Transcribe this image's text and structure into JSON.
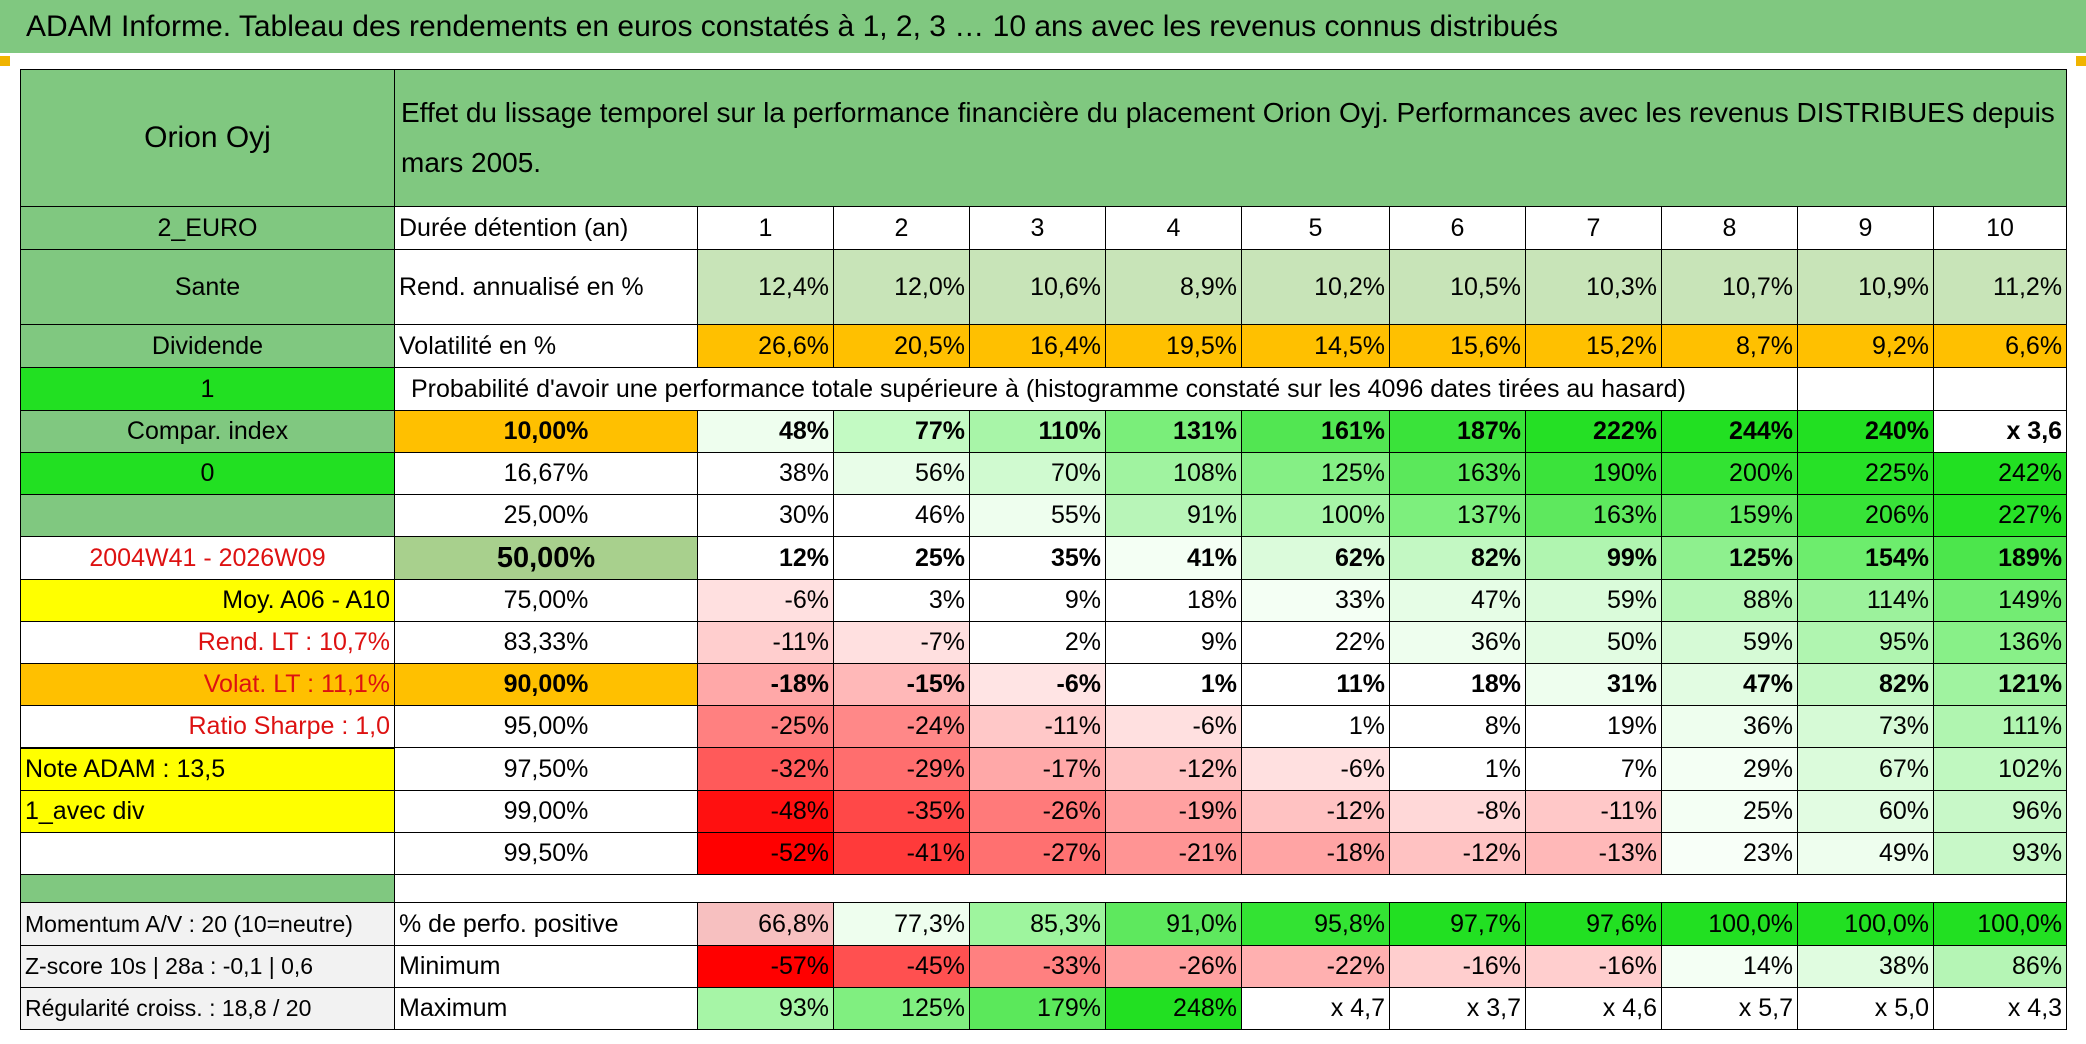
{
  "title": "ADAM Informe. Tableau des rendements en euros constatés à 1, 2, 3 … 10 ans avec les revenus connus distribués",
  "header": {
    "asset": "Orion Oyj",
    "description": "Effet du lissage temporel sur la performance financière du placement Orion Oyj. Performances avec les revenus DISTRIBUES depuis mars 2005."
  },
  "left_panel": {
    "currency": "2_EURO",
    "sector": "Sante",
    "type": "Dividende",
    "flag1": "1",
    "compar_index": "Compar. index",
    "flag0": "0",
    "blank": "",
    "period": "2004W41 - 2026W09",
    "moy": "Moy. A06 - A10",
    "rend_lt": "Rend. LT :    10,7%",
    "volat_lt": "Volat. LT :    11,1%",
    "sharpe": "Ratio Sharpe :    1,0",
    "note": "Note ADAM : 13,5",
    "variant": "1_avec div"
  },
  "table": {
    "duration_label": "Durée détention (an)",
    "years": [
      "1",
      "2",
      "3",
      "4",
      "5",
      "6",
      "7",
      "8",
      "9",
      "10"
    ],
    "rend_label": "Rend. annualisé en %",
    "rend": [
      "12,4%",
      "12,0%",
      "10,6%",
      "8,9%",
      "10,2%",
      "10,5%",
      "10,3%",
      "10,7%",
      "10,9%",
      "11,2%"
    ],
    "vol_label": "Volatilité en %",
    "vol": [
      "26,6%",
      "20,5%",
      "16,4%",
      "19,5%",
      "14,5%",
      "15,6%",
      "15,2%",
      "8,7%",
      "9,2%",
      "6,6%"
    ],
    "prob_label": "Probabilité d'avoir une performance totale supérieure à (histogramme constaté sur les 4096 dates tirées au hasard)",
    "prob_rows": [
      {
        "p": "10,00%",
        "v": [
          "48%",
          "77%",
          "110%",
          "131%",
          "161%",
          "187%",
          "222%",
          "244%",
          "240%",
          "x 3,6"
        ]
      },
      {
        "p": "16,67%",
        "v": [
          "38%",
          "56%",
          "70%",
          "108%",
          "125%",
          "163%",
          "190%",
          "200%",
          "225%",
          "242%"
        ]
      },
      {
        "p": "25,00%",
        "v": [
          "30%",
          "46%",
          "55%",
          "91%",
          "100%",
          "137%",
          "163%",
          "159%",
          "206%",
          "227%"
        ]
      },
      {
        "p": "50,00%",
        "v": [
          "12%",
          "25%",
          "35%",
          "41%",
          "62%",
          "82%",
          "99%",
          "125%",
          "154%",
          "189%"
        ]
      },
      {
        "p": "75,00%",
        "v": [
          "-6%",
          "3%",
          "9%",
          "18%",
          "33%",
          "47%",
          "59%",
          "88%",
          "114%",
          "149%"
        ]
      },
      {
        "p": "83,33%",
        "v": [
          "-11%",
          "-7%",
          "2%",
          "9%",
          "22%",
          "36%",
          "50%",
          "59%",
          "95%",
          "136%"
        ]
      },
      {
        "p": "90,00%",
        "v": [
          "-18%",
          "-15%",
          "-6%",
          "1%",
          "11%",
          "18%",
          "31%",
          "47%",
          "82%",
          "121%"
        ]
      },
      {
        "p": "95,00%",
        "v": [
          "-25%",
          "-24%",
          "-11%",
          "-6%",
          "1%",
          "8%",
          "19%",
          "36%",
          "73%",
          "111%"
        ]
      },
      {
        "p": "97,50%",
        "v": [
          "-32%",
          "-29%",
          "-17%",
          "-12%",
          "-6%",
          "1%",
          "7%",
          "29%",
          "67%",
          "102%"
        ]
      },
      {
        "p": "99,00%",
        "v": [
          "-48%",
          "-35%",
          "-26%",
          "-19%",
          "-12%",
          "-8%",
          "-11%",
          "25%",
          "60%",
          "96%"
        ]
      },
      {
        "p": "99,50%",
        "v": [
          "-52%",
          "-41%",
          "-27%",
          "-21%",
          "-18%",
          "-12%",
          "-13%",
          "23%",
          "49%",
          "93%"
        ]
      }
    ]
  },
  "bottom": {
    "momentum": "Momentum A/V : 20 (10=neutre)",
    "zscore": "Z-score 10s | 28a : -0,1 | 0,6",
    "regularite": "Régularité croiss. : 18,8 / 20",
    "pos_label": "% de perfo. positive",
    "pos": [
      "66,8%",
      "77,3%",
      "85,3%",
      "91,0%",
      "95,8%",
      "97,7%",
      "97,6%",
      "100,0%",
      "100,0%",
      "100,0%"
    ],
    "min_label": "Minimum",
    "min": [
      "-57%",
      "-45%",
      "-33%",
      "-26%",
      "-22%",
      "-16%",
      "-16%",
      "14%",
      "38%",
      "86%"
    ],
    "max_label": "Maximum",
    "max": [
      "93%",
      "125%",
      "179%",
      "248%",
      "x 4,7",
      "x 3,7",
      "x 4,6",
      "x 5,7",
      "x 5,0",
      "x 4,3"
    ]
  },
  "colors": {
    "header_green": "#80c880",
    "bright_green": "#22e022",
    "orange": "#ffc000",
    "yellow": "#ffff00",
    "red_text": "#dd1111"
  }
}
